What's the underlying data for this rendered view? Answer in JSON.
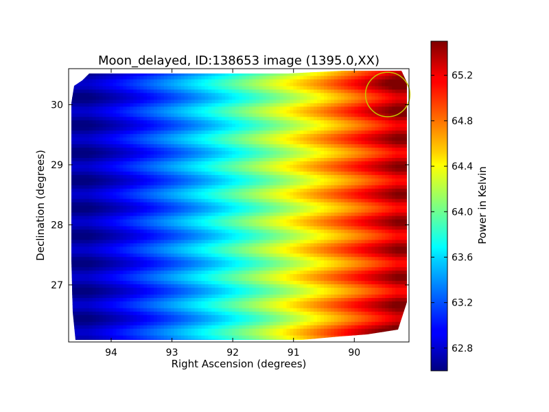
{
  "chart_data": {
    "type": "heatmap",
    "title": "Moon_delayed, ID:138653 image (1395.0,XX)",
    "xlabel": "Right Ascension (degrees)",
    "ylabel": "Declination (degrees)",
    "xlim": [
      94.7,
      89.1
    ],
    "ylim": [
      26.05,
      30.6
    ],
    "x_ticks": [
      "94",
      "93",
      "92",
      "91",
      "90"
    ],
    "y_ticks": [
      "27",
      "28",
      "29",
      "30"
    ],
    "colorbar": {
      "label": "Power in Kelvin",
      "range": [
        62.6,
        65.5
      ],
      "ticks": [
        "62.8",
        "63.2",
        "63.6",
        "64.0",
        "64.4",
        "64.8",
        "65.2"
      ],
      "colormap": "jet"
    },
    "grid": false,
    "value_model": {
      "ra_cold": 94.4,
      "ra_hot": 89.3,
      "min_value": 62.7,
      "max_value": 65.3,
      "stripe_spacing_deg": 0.46,
      "stripe_amplitude": 0.2
    },
    "annotation_circle": {
      "ra": 89.45,
      "dec": 30.17,
      "radius_deg": 0.37,
      "color": "#c8c800"
    }
  }
}
